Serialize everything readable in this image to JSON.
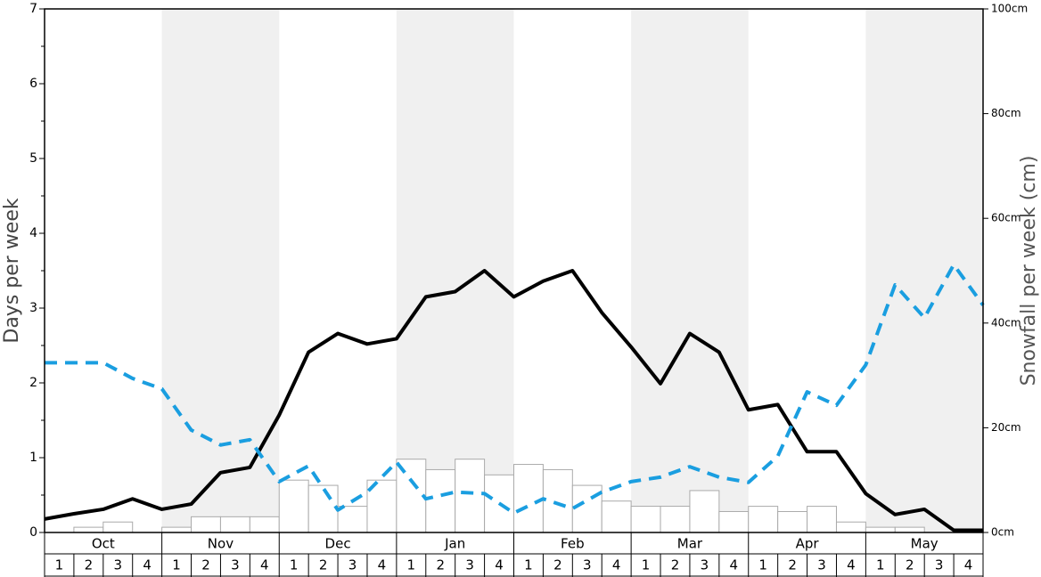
{
  "chart_data": {
    "type": "bar",
    "ylabel": "Days per week",
    "y2label": "Snowfall per week (cm)",
    "months": [
      "Oct",
      "Nov",
      "Dec",
      "Jan",
      "Feb",
      "Mar",
      "Apr",
      "May"
    ],
    "weeks": [
      1,
      2,
      3,
      4
    ],
    "ylim": [
      0,
      7
    ],
    "yticks": [
      0,
      1,
      2,
      3,
      4,
      5,
      6,
      7
    ],
    "y2lim": [
      0,
      100
    ],
    "y2ticks": [
      {
        "value": 0,
        "label": "0cm"
      },
      {
        "value": 20,
        "label": "20cm"
      },
      {
        "value": 40,
        "label": "40cm"
      },
      {
        "value": 60,
        "label": "60cm"
      },
      {
        "value": 80,
        "label": "80cm"
      },
      {
        "value": 100,
        "label": "100cm"
      }
    ],
    "bars": {
      "axis": "y2",
      "color": "#ffffff",
      "values": [
        0,
        1,
        2,
        0,
        1,
        3,
        3,
        3,
        10,
        9,
        5,
        10,
        14,
        12,
        14,
        11,
        13,
        12,
        9,
        6,
        5,
        5,
        8,
        4,
        5,
        4,
        5,
        2,
        1,
        1,
        0,
        0
      ]
    },
    "series": [
      {
        "color": "#000000",
        "values": [
          0.18,
          0.25,
          0.31,
          0.45,
          0.31,
          0.38,
          0.8,
          0.87,
          1.57,
          2.41,
          2.66,
          2.52,
          2.59,
          3.15,
          3.22,
          3.5,
          3.15,
          3.36,
          3.5,
          2.94,
          2.48,
          1.99,
          2.66,
          2.41,
          1.64,
          1.71,
          1.08,
          1.08,
          0.52,
          0.24,
          0.31,
          0.03,
          0.03
        ]
      },
      {
        "color": "#1a9ee0",
        "dashed": true,
        "values": [
          2.27,
          2.27,
          2.27,
          2.06,
          1.92,
          1.37,
          1.17,
          1.24,
          0.68,
          0.89,
          0.3,
          0.54,
          0.94,
          0.45,
          0.54,
          0.52,
          0.26,
          0.45,
          0.32,
          0.54,
          0.68,
          0.74,
          0.88,
          0.74,
          0.67,
          1.02,
          1.88,
          1.7,
          2.24,
          3.31,
          2.87,
          3.58,
          3.04
        ]
      }
    ]
  }
}
